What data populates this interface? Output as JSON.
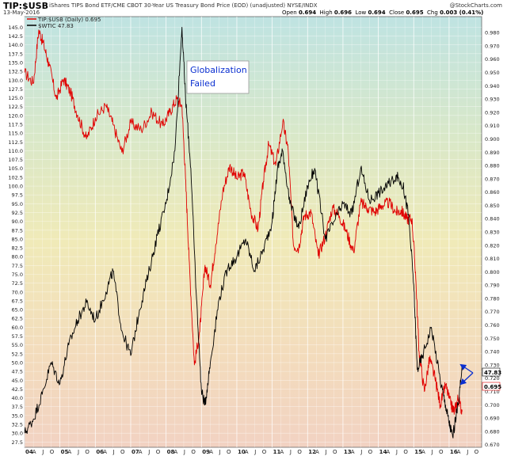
{
  "header": {
    "symbol": "TIP:$USB",
    "description": "iShares TIPS Bond ETF/CME CBOT 30-Year US Treasury Bond Price (EOD) (unadjusted)  NYSE/INDX",
    "brand": "@StockCharts.com",
    "date": "13-May-2016",
    "open_label": "Open",
    "open": "0.694",
    "high_label": "High",
    "high": "0.696",
    "low_label": "Low",
    "low": "0.694",
    "close_label": "Close",
    "close": "0.695",
    "chg_label": "Chg",
    "chg": "0.003 (0.41%)"
  },
  "legend": [
    {
      "label": "TIP:$USB (Daily) 0.695",
      "color": "#e00000"
    },
    {
      "label": "$WTIC 47.83",
      "color": "#000000"
    }
  ],
  "annotation": {
    "line1": "Globalization",
    "line2": "Failed",
    "color": "#0a2fd0"
  },
  "price_tags": {
    "wtic": "47.83",
    "ratio": "0.695"
  },
  "chart_data": {
    "type": "line",
    "x_ticks": [
      "04",
      "A",
      "J",
      "O",
      "05",
      "A",
      "J",
      "O",
      "06",
      "A",
      "J",
      "O",
      "07",
      "A",
      "J",
      "O",
      "08",
      "A",
      "J",
      "O",
      "09",
      "A",
      "J",
      "O",
      "10",
      "A",
      "J",
      "O",
      "11",
      "A",
      "J",
      "O",
      "12",
      "A",
      "J",
      "O",
      "13",
      "A",
      "J",
      "O",
      "14",
      "A",
      "J",
      "O",
      "15",
      "A",
      "J",
      "O",
      "16",
      "A",
      "J",
      "O"
    ],
    "x_range": [
      2004.0,
      2016.92
    ],
    "left_axis": {
      "series": "$WTIC",
      "ylim": [
        26,
        148
      ],
      "ticks": [
        27.5,
        30,
        32.5,
        35,
        37.5,
        40,
        42.5,
        45,
        47.5,
        50,
        52.5,
        55,
        57.5,
        60,
        62.5,
        65,
        67.5,
        70,
        72.5,
        75,
        77.5,
        80,
        82.5,
        85,
        87.5,
        90,
        92.5,
        95,
        97.5,
        100,
        102.5,
        105,
        107.5,
        110,
        112.5,
        115,
        117.5,
        120,
        122.5,
        125,
        127.5,
        130,
        132.5,
        135,
        137.5,
        140,
        142.5,
        145
      ]
    },
    "right_axis": {
      "series": "TIP:$USB",
      "ylim": [
        0.668,
        0.992
      ],
      "ticks": [
        0.67,
        0.68,
        0.69,
        0.7,
        0.71,
        0.72,
        0.73,
        0.74,
        0.75,
        0.76,
        0.77,
        0.78,
        0.79,
        0.8,
        0.81,
        0.82,
        0.83,
        0.84,
        0.85,
        0.86,
        0.87,
        0.88,
        0.89,
        0.9,
        0.91,
        0.92,
        0.93,
        0.94,
        0.95,
        0.96,
        0.97,
        0.98
      ]
    },
    "series": [
      {
        "name": "TIP:$USB",
        "axis": "right",
        "color": "#e00000",
        "x": [
          2004.0,
          2004.25,
          2004.4,
          2004.55,
          2004.7,
          2004.9,
          2005.1,
          2005.3,
          2005.5,
          2005.75,
          2006.0,
          2006.3,
          2006.5,
          2006.75,
          2007.0,
          2007.3,
          2007.6,
          2007.9,
          2008.1,
          2008.3,
          2008.45,
          2008.55,
          2008.65,
          2008.8,
          2008.95,
          2009.1,
          2009.25,
          2009.4,
          2009.6,
          2009.8,
          2010.0,
          2010.2,
          2010.4,
          2010.6,
          2010.75,
          2010.9,
          2011.1,
          2011.3,
          2011.45,
          2011.6,
          2011.75,
          2011.9,
          2012.1,
          2012.3,
          2012.5,
          2012.7,
          2012.9,
          2013.1,
          2013.3,
          2013.5,
          2013.7,
          2013.9,
          2014.1,
          2014.3,
          2014.5,
          2014.65,
          2014.8,
          2014.95,
          2015.05,
          2015.15,
          2015.3,
          2015.45,
          2015.6,
          2015.75,
          2015.9,
          2016.05,
          2016.15,
          2016.25,
          2016.37
        ],
        "y": [
          0.95,
          0.942,
          0.982,
          0.97,
          0.955,
          0.93,
          0.945,
          0.935,
          0.918,
          0.9,
          0.916,
          0.925,
          0.911,
          0.89,
          0.912,
          0.907,
          0.92,
          0.91,
          0.92,
          0.93,
          0.925,
          0.87,
          0.81,
          0.73,
          0.755,
          0.805,
          0.79,
          0.82,
          0.86,
          0.88,
          0.87,
          0.875,
          0.845,
          0.832,
          0.868,
          0.896,
          0.88,
          0.913,
          0.892,
          0.82,
          0.818,
          0.842,
          0.845,
          0.812,
          0.827,
          0.848,
          0.842,
          0.83,
          0.815,
          0.852,
          0.848,
          0.845,
          0.85,
          0.852,
          0.845,
          0.846,
          0.84,
          0.84,
          0.8,
          0.74,
          0.71,
          0.735,
          0.72,
          0.7,
          0.715,
          0.7,
          0.695,
          0.705,
          0.695
        ]
      },
      {
        "name": "$WTIC",
        "axis": "left",
        "color": "#000000",
        "x": [
          2004.0,
          2004.25,
          2004.5,
          2004.75,
          2005.0,
          2005.25,
          2005.5,
          2005.75,
          2006.0,
          2006.3,
          2006.5,
          2006.75,
          2007.0,
          2007.25,
          2007.5,
          2007.75,
          2008.0,
          2008.25,
          2008.45,
          2008.55,
          2008.7,
          2008.85,
          2009.0,
          2009.1,
          2009.25,
          2009.5,
          2009.75,
          2010.0,
          2010.25,
          2010.5,
          2010.75,
          2011.0,
          2011.15,
          2011.3,
          2011.5,
          2011.75,
          2012.0,
          2012.2,
          2012.5,
          2012.75,
          2013.0,
          2013.25,
          2013.5,
          2013.75,
          2014.0,
          2014.25,
          2014.5,
          2014.7,
          2014.85,
          2015.0,
          2015.1,
          2015.25,
          2015.5,
          2015.75,
          2015.9,
          2016.0,
          2016.1,
          2016.25,
          2016.37
        ],
        "y": [
          30,
          34,
          41,
          50,
          44,
          55,
          62,
          67,
          62,
          70,
          76,
          59,
          52,
          65,
          75,
          86,
          95,
          110,
          145,
          125,
          105,
          70,
          42,
          38,
          50,
          68,
          77,
          80,
          85,
          76,
          82,
          90,
          105,
          110,
          95,
          88,
          100,
          105,
          85,
          90,
          95,
          92,
          105,
          96,
          98,
          100,
          103,
          100,
          92,
          72,
          48,
          52,
          60,
          45,
          38,
          33,
          29,
          38,
          47.83
        ]
      }
    ]
  }
}
